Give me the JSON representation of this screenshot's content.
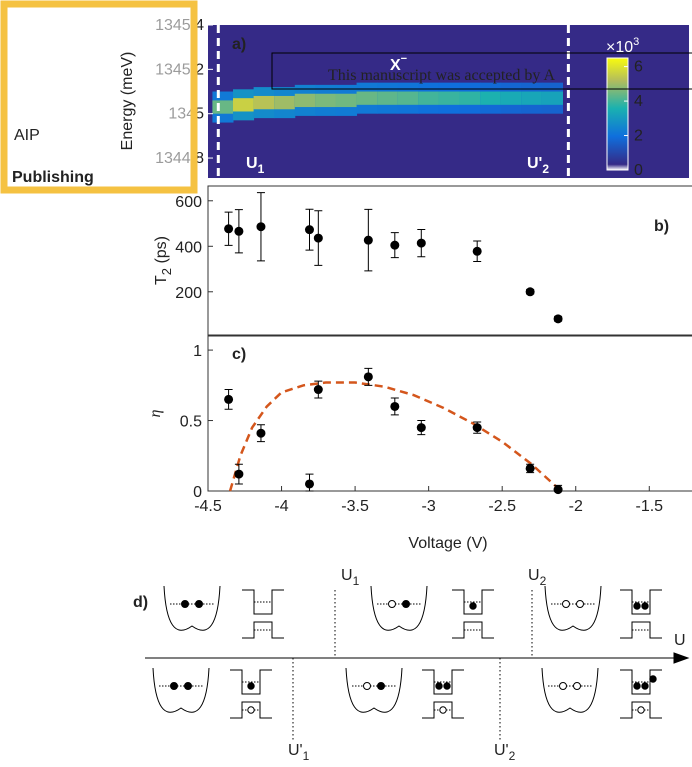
{
  "chart_data": [
    {
      "type": "heatmap",
      "label": "a)",
      "annotation": "X",
      "annotation_sup": "−",
      "ylabel": "Energy (meV)",
      "ylim": [
        1344.71,
        1345.4
      ],
      "yticks": [
        1344.8,
        1345,
        1345.2,
        1345.4
      ],
      "xlim": [
        -4.5,
        -1.23
      ],
      "x": [
        -4.4,
        -4.26,
        -4.12,
        -3.98,
        -3.84,
        -3.7,
        -3.56,
        -3.42,
        -3.28,
        -3.14,
        -3.0,
        -2.86,
        -2.72,
        -2.58,
        -2.44,
        -2.3,
        -2.16
      ],
      "peak": [
        1345.03,
        1345.04,
        1345.05,
        1345.05,
        1345.06,
        1345.06,
        1345.06,
        1345.07,
        1345.07,
        1345.07,
        1345.07,
        1345.07,
        1345.07,
        1345.07,
        1345.07,
        1345.07,
        1345.07
      ],
      "values": [
        4.4,
        5.6,
        5.3,
        5.0,
        4.8,
        4.6,
        4.5,
        4.4,
        4.3,
        4.2,
        4.0,
        3.9,
        3.8,
        3.6,
        3.4,
        3.3,
        3.2
      ],
      "background": "#352a87",
      "vlines": [
        -4.43,
        -2.05
      ],
      "vline_labels": [
        {
          "text": "U",
          "sub": "1"
        },
        {
          "text": "U'",
          "sub": "2"
        }
      ],
      "colorbar": {
        "lim": [
          0,
          6.5
        ],
        "ticks": [
          0,
          2,
          4,
          6
        ],
        "exponent": "×10",
        "exponent_sup": "3"
      }
    },
    {
      "type": "scatter",
      "label": "b)",
      "ylabel": "T",
      "ylabel_sub": "2",
      "ylabel_unit": " (ps)",
      "color": "#000000",
      "xlim": [
        -4.5,
        -1.23
      ],
      "ylim": [
        10,
        665
      ],
      "yticks": [
        200,
        400,
        600
      ],
      "x": [
        -4.36,
        -4.29,
        -4.14,
        -3.81,
        -3.75,
        -3.41,
        -3.23,
        -3.05,
        -2.67,
        -2.31,
        -2.12
      ],
      "values": [
        477,
        466,
        486,
        473,
        436,
        427,
        405,
        414,
        378,
        200,
        81
      ],
      "errors": [
        73,
        95,
        150,
        90,
        120,
        135,
        55,
        60,
        45,
        10,
        10
      ]
    },
    {
      "type": "scatter",
      "label": "c)",
      "ylabel": "η",
      "xlabel": "Voltage (V)",
      "color": "#000000",
      "xlim": [
        -4.5,
        -1.23
      ],
      "ylim": [
        0,
        1.1
      ],
      "yticks": [
        0,
        0.5,
        1
      ],
      "xticks": [
        -4.5,
        -4,
        -3.5,
        -3,
        -2.5,
        -2,
        -1.5
      ],
      "x": [
        -4.36,
        -4.29,
        -4.14,
        -3.81,
        -3.75,
        -3.41,
        -3.23,
        -3.05,
        -2.67,
        -2.31,
        -2.12
      ],
      "values": [
        0.65,
        0.12,
        0.41,
        0.05,
        0.72,
        0.81,
        0.6,
        0.45,
        0.45,
        0.16,
        0.01
      ],
      "errors": [
        0.07,
        0.07,
        0.06,
        0.07,
        0.06,
        0.06,
        0.06,
        0.05,
        0.04,
        0.03,
        0.03
      ],
      "fit": {
        "color": "#d4561c",
        "x": [
          -4.35,
          -4.28,
          -4.2,
          -4.1,
          -4.0,
          -3.85,
          -3.7,
          -3.5,
          -3.3,
          -3.1,
          -2.9,
          -2.7,
          -2.5,
          -2.3,
          -2.1
        ],
        "y": [
          0,
          0.25,
          0.45,
          0.6,
          0.7,
          0.75,
          0.77,
          0.77,
          0.74,
          0.68,
          0.59,
          0.48,
          0.35,
          0.19,
          0
        ]
      }
    }
  ],
  "overlay": "This manuscript was accepted by A",
  "logo": {
    "title": "AIP",
    "subtitle": "Publishing"
  },
  "diagram": {
    "label": "d)",
    "axis": "U",
    "upper": [
      {
        "text": "U",
        "sub": "1"
      },
      {
        "text": "U",
        "sub": "2"
      }
    ],
    "lower": [
      {
        "text": "U'",
        "sub": "1"
      },
      {
        "text": "U'",
        "sub": "2"
      }
    ]
  }
}
